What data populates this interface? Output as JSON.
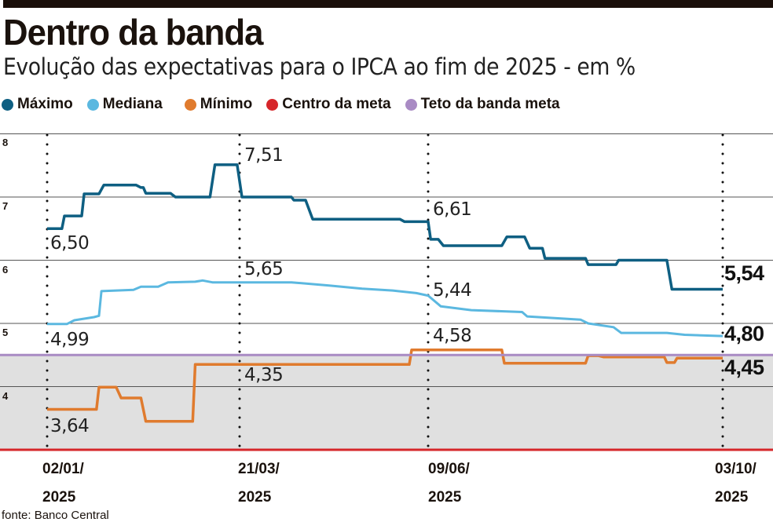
{
  "header": {
    "title": "Dentro da banda",
    "subtitle": "Evolução das expectativas para o IPCA ao fim de 2025 - em %"
  },
  "source": "fonte: Banco Central",
  "chart_data": {
    "type": "line",
    "title": "Dentro da banda",
    "subtitle": "Evolução das expectativas para o IPCA ao fim de 2025 - em %",
    "xlabel": "",
    "ylabel": "%",
    "x_unit": "days since 02/01/2025",
    "ylim": [
      3,
      8
    ],
    "yticks": [
      "8",
      "7",
      "6",
      "5",
      "4"
    ],
    "grid": true,
    "legend_position": "top-left",
    "xticks": [
      {
        "day": 0,
        "line1": "02/01/",
        "line2": "2025"
      },
      {
        "day": 78,
        "line1": "21/03/",
        "line2": "2025"
      },
      {
        "day": 158,
        "line1": "09/06/",
        "line2": "2025"
      },
      {
        "day": 274,
        "line1": "03/10/",
        "line2": "2025"
      }
    ],
    "series": [
      {
        "name": "Máximo",
        "color": "#0e5f82",
        "points": [
          [
            0,
            6.5
          ],
          [
            6,
            6.5
          ],
          [
            7,
            6.7
          ],
          [
            14,
            6.7
          ],
          [
            15,
            7.05
          ],
          [
            21,
            7.05
          ],
          [
            23,
            7.19
          ],
          [
            36,
            7.19
          ],
          [
            38,
            7.15
          ],
          [
            39,
            7.15
          ],
          [
            40,
            7.06
          ],
          [
            50,
            7.06
          ],
          [
            52,
            7.0
          ],
          [
            66,
            7.0
          ],
          [
            68,
            7.51
          ],
          [
            77,
            7.51
          ],
          [
            79,
            7.0
          ],
          [
            100,
            7.0
          ],
          [
            101,
            6.95
          ],
          [
            106,
            6.95
          ],
          [
            109,
            6.65
          ],
          [
            146,
            6.65
          ],
          [
            148,
            6.61
          ],
          [
            158,
            6.61
          ],
          [
            159,
            6.33
          ],
          [
            162,
            6.33
          ],
          [
            164,
            6.23
          ],
          [
            187,
            6.23
          ],
          [
            189,
            6.37
          ],
          [
            196,
            6.37
          ],
          [
            198,
            6.19
          ],
          [
            203,
            6.19
          ],
          [
            204,
            6.03
          ],
          [
            220,
            6.03
          ],
          [
            221,
            5.93
          ],
          [
            232,
            5.93
          ],
          [
            233,
            6.0
          ],
          [
            252,
            6.0
          ],
          [
            254,
            5.54
          ],
          [
            274,
            5.54
          ]
        ]
      },
      {
        "name": "Mediana",
        "color": "#5bb8e0",
        "points": [
          [
            0,
            4.99
          ],
          [
            8,
            4.99
          ],
          [
            11,
            5.05
          ],
          [
            19,
            5.1
          ],
          [
            21,
            5.12
          ],
          [
            22,
            5.51
          ],
          [
            35,
            5.53
          ],
          [
            38,
            5.58
          ],
          [
            45,
            5.58
          ],
          [
            49,
            5.65
          ],
          [
            60,
            5.66
          ],
          [
            63,
            5.68
          ],
          [
            67,
            5.65
          ],
          [
            78,
            5.65
          ],
          [
            100,
            5.65
          ],
          [
            116,
            5.6
          ],
          [
            130,
            5.55
          ],
          [
            143,
            5.52
          ],
          [
            153,
            5.48
          ],
          [
            158,
            5.44
          ],
          [
            163,
            5.27
          ],
          [
            175,
            5.21
          ],
          [
            195,
            5.18
          ],
          [
            197,
            5.11
          ],
          [
            218,
            5.06
          ],
          [
            221,
            5.0
          ],
          [
            231,
            4.94
          ],
          [
            234,
            4.85
          ],
          [
            252,
            4.85
          ],
          [
            259,
            4.82
          ],
          [
            274,
            4.8
          ]
        ]
      },
      {
        "name": "Mínimo",
        "color": "#e07b2e",
        "points": [
          [
            0,
            3.64
          ],
          [
            20,
            3.64
          ],
          [
            21,
            3.99
          ],
          [
            28,
            3.99
          ],
          [
            30,
            3.82
          ],
          [
            38,
            3.82
          ],
          [
            40,
            3.45
          ],
          [
            59,
            3.45
          ],
          [
            60,
            4.35
          ],
          [
            150,
            4.35
          ],
          [
            151,
            4.58
          ],
          [
            187,
            4.58
          ],
          [
            188,
            4.37
          ],
          [
            220,
            4.37
          ],
          [
            221,
            4.49
          ],
          [
            225,
            4.49
          ],
          [
            227,
            4.47
          ],
          [
            251,
            4.47
          ],
          [
            252,
            4.38
          ],
          [
            255,
            4.38
          ],
          [
            256,
            4.45
          ],
          [
            274,
            4.45
          ]
        ]
      },
      {
        "name": "Centro da meta",
        "color": "#d6262a",
        "points": [
          [
            0,
            3.0
          ],
          [
            274,
            3.0
          ]
        ]
      },
      {
        "name": "Teto da banda meta",
        "color": "#a98bc4",
        "points": [
          [
            0,
            4.5
          ],
          [
            274,
            4.5
          ]
        ]
      }
    ],
    "annotations": [
      {
        "series": "Máximo",
        "day": 0,
        "text": "6,50"
      },
      {
        "series": "Máximo",
        "day": 78,
        "text": "7,51"
      },
      {
        "series": "Máximo",
        "day": 158,
        "text": "6,61"
      },
      {
        "series": "Máximo",
        "day": 274,
        "text": "5,54"
      },
      {
        "series": "Mediana",
        "day": 0,
        "text": "4,99"
      },
      {
        "series": "Mediana",
        "day": 78,
        "text": "5,65"
      },
      {
        "series": "Mediana",
        "day": 158,
        "text": "5,44"
      },
      {
        "series": "Mediana",
        "day": 274,
        "text": "4,80"
      },
      {
        "series": "Mínimo",
        "day": 0,
        "text": "3,64"
      },
      {
        "series": "Mínimo",
        "day": 78,
        "text": "4,35"
      },
      {
        "series": "Mínimo",
        "day": 158,
        "text": "4,58"
      },
      {
        "series": "Mínimo",
        "day": 274,
        "text": "4,45"
      }
    ]
  }
}
